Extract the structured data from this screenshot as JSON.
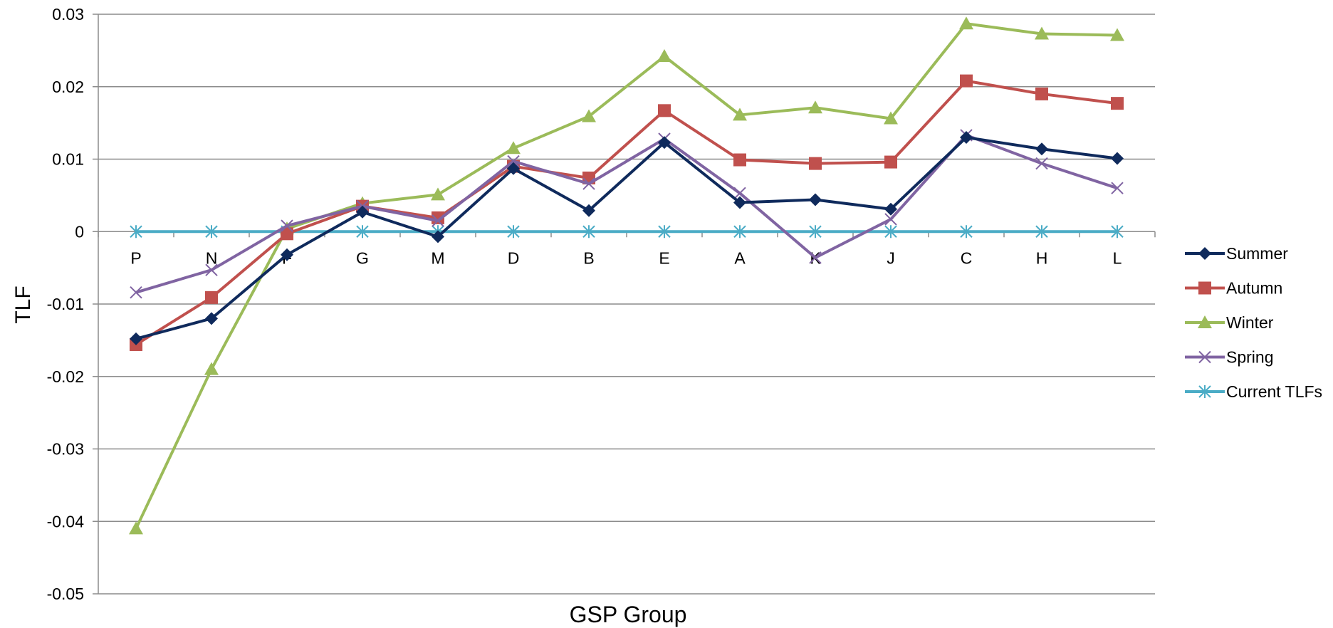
{
  "chart_data": {
    "type": "line",
    "title": "",
    "xlabel": "GSP Group",
    "ylabel": "TLF",
    "ylim": [
      -0.05,
      0.03
    ],
    "yticks": [
      0.03,
      0.02,
      0.01,
      0,
      -0.01,
      -0.02,
      -0.03,
      -0.04,
      -0.05
    ],
    "ytick_labels": [
      "0.03",
      "0.02",
      "0.01",
      "0",
      "-0.01",
      "-0.02",
      "-0.03",
      "-0.04",
      "-0.05"
    ],
    "grid": "horizontal",
    "legend_position": "right",
    "categories": [
      "P",
      "N",
      "F",
      "G",
      "M",
      "D",
      "B",
      "E",
      "A",
      "K",
      "J",
      "C",
      "H",
      "L"
    ],
    "series": [
      {
        "name": "Summer",
        "color": "#0f2a5c",
        "marker": "diamond",
        "values": [
          -0.0148,
          -0.012,
          -0.0032,
          0.0027,
          -0.0007,
          0.0087,
          0.0029,
          0.0123,
          0.004,
          0.0044,
          0.0031,
          0.013,
          0.0114,
          0.0101
        ]
      },
      {
        "name": "Autumn",
        "color": "#c0504d",
        "marker": "square",
        "values": [
          -0.0156,
          -0.0091,
          -0.0003,
          0.0035,
          0.0019,
          0.009,
          0.0074,
          0.0167,
          0.0099,
          0.0094,
          0.0096,
          0.0208,
          0.019,
          0.0177
        ]
      },
      {
        "name": "Winter",
        "color": "#9bbb59",
        "marker": "triangle",
        "values": [
          -0.041,
          -0.019,
          0.0004,
          0.0039,
          0.0051,
          0.0115,
          0.0159,
          0.0242,
          0.0161,
          0.0171,
          0.0156,
          0.0287,
          0.0273,
          0.0271
        ]
      },
      {
        "name": "Spring",
        "color": "#8064a2",
        "marker": "x",
        "values": [
          -0.0084,
          -0.0053,
          0.0008,
          0.0035,
          0.0015,
          0.0097,
          0.0066,
          0.0128,
          0.0053,
          -0.0036,
          0.0017,
          0.0133,
          0.0094,
          0.006
        ]
      },
      {
        "name": "Current TLFs",
        "color": "#4bacc6",
        "marker": "asterisk",
        "values": [
          0,
          0,
          0,
          0,
          0,
          0,
          0,
          0,
          0,
          0,
          0,
          0,
          0,
          0
        ]
      }
    ]
  }
}
